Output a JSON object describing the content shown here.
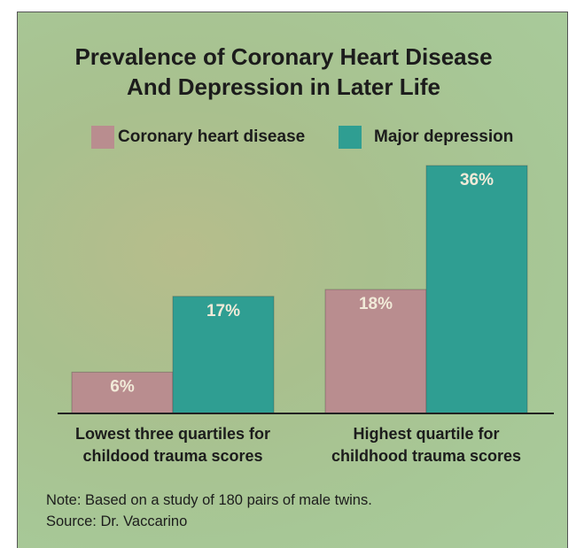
{
  "chart_data": {
    "type": "bar",
    "title": "Prevalence of Coronary Heart Disease\nAnd Depression in Later Life",
    "categories": [
      "Lowest three quartiles for\nchildood trauma scores",
      "Highest quartile for\nchildhood trauma scores"
    ],
    "series": [
      {
        "name": "Coronary heart disease",
        "color": "#b98d8f",
        "values": [
          6,
          18
        ],
        "value_labels": [
          "6%",
          "18%"
        ]
      },
      {
        "name": "Major depression",
        "color": "#2f9e92",
        "values": [
          17,
          36
        ],
        "value_labels": [
          "17%",
          "36%"
        ]
      }
    ],
    "note": "Note: Based on a study of 180 pairs of male twins.",
    "source": "Source: Dr. Vaccarino"
  }
}
